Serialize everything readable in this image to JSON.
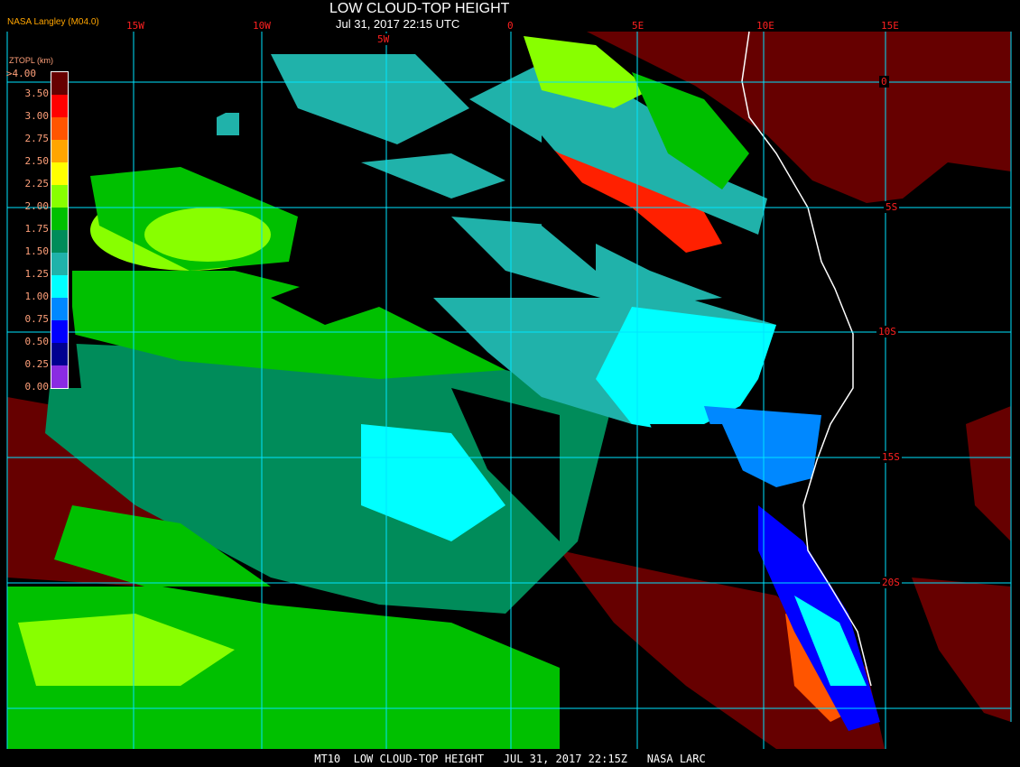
{
  "header": {
    "title": "LOW CLOUD-TOP HEIGHT",
    "subtitle": "Jul 31, 2017 22:15 UTC",
    "organization": "NASA Langley (M04.0)"
  },
  "grid": {
    "longitudes": [
      "15W",
      "10W",
      "5W",
      "0",
      "5E",
      "10E",
      "15E"
    ],
    "latitudes": [
      "0",
      "5S",
      "10S",
      "15S",
      "20S"
    ],
    "line_color": "#00e5ff"
  },
  "legend": {
    "title": "ZTOPL (km)",
    "labels": [
      ">4.00",
      "3.50",
      "3.00",
      "2.75",
      "2.50",
      "2.25",
      "2.00",
      "1.75",
      "1.50",
      "1.25",
      "1.00",
      "0.75",
      "0.50",
      "0.25",
      "0.00"
    ],
    "colors": [
      "#660000",
      "#ff0000",
      "#ff5500",
      "#ffa500",
      "#ffff00",
      "#88ff00",
      "#00c000",
      "#008c5a",
      "#20b2aa",
      "#00ffff",
      "#0088ff",
      "#0000ff",
      "#000090",
      "#8a2be2"
    ]
  },
  "footer": {
    "text": "MT10  LOW CLOUD-TOP HEIGHT   JUL 31, 2017 22:15Z   NASA LARC"
  }
}
